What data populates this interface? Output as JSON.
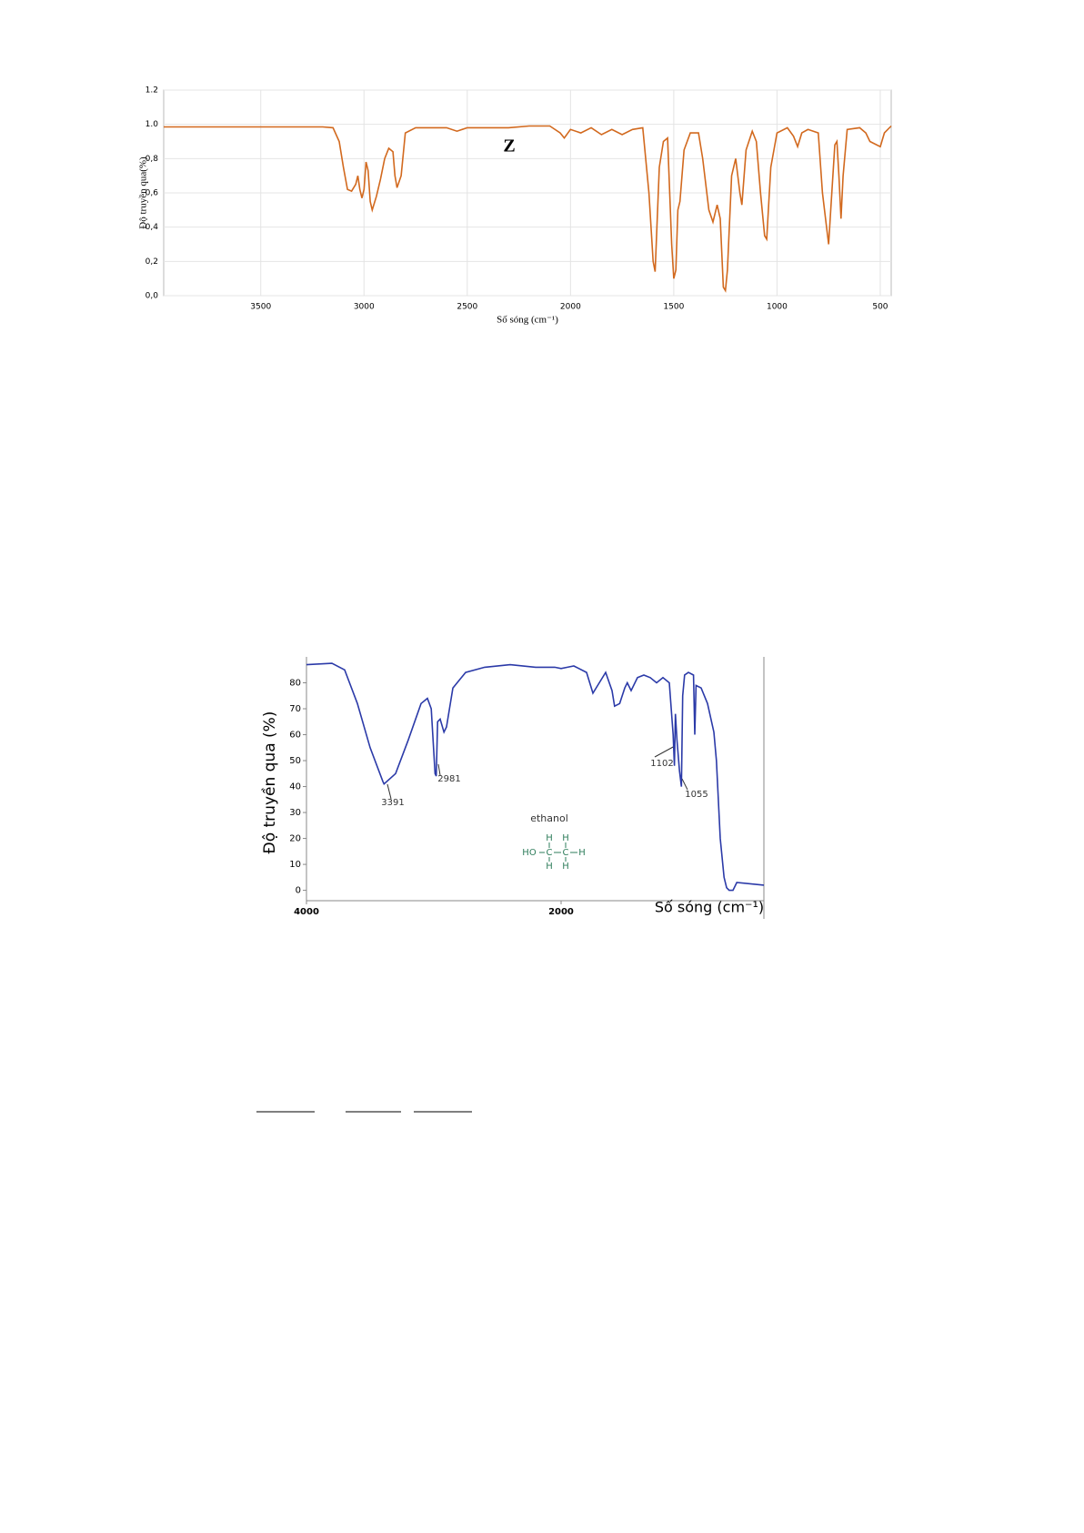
{
  "chart_data": [
    {
      "type": "line",
      "y_label": "Độ truyền qua(%)",
      "x_label": "Số sóng (cm⁻¹)",
      "annotation": "Z",
      "xlim": [
        3970,
        447
      ],
      "ylim": [
        0,
        1.2
      ],
      "xticks": [
        3500,
        3000,
        2500,
        2000,
        1500,
        1000,
        500
      ],
      "yticks": [
        {
          "value": 0,
          "label": "0,0"
        },
        {
          "value": 0.2,
          "label": "0,2"
        },
        {
          "value": 0.4,
          "label": "0,4"
        },
        {
          "value": 0.6,
          "label": "0,6"
        },
        {
          "value": 0.8,
          "label": "0,8"
        },
        {
          "value": 1.0,
          "label": "1.0"
        },
        {
          "value": 1.2,
          "label": "1.2"
        }
      ],
      "x": [
        3970,
        3500,
        3200,
        3150,
        3120,
        3100,
        3080,
        3060,
        3040,
        3030,
        3020,
        3010,
        3000,
        2990,
        2980,
        2970,
        2960,
        2940,
        2920,
        2900,
        2880,
        2860,
        2850,
        2840,
        2820,
        2800,
        2750,
        2600,
        2550,
        2500,
        2300,
        2200,
        2100,
        2050,
        2030,
        2000,
        1950,
        1900,
        1850,
        1800,
        1750,
        1700,
        1650,
        1620,
        1600,
        1590,
        1570,
        1550,
        1530,
        1510,
        1500,
        1490,
        1480,
        1470,
        1450,
        1420,
        1380,
        1360,
        1330,
        1310,
        1290,
        1275,
        1260,
        1250,
        1240,
        1220,
        1200,
        1180,
        1170,
        1150,
        1120,
        1100,
        1080,
        1060,
        1050,
        1030,
        1000,
        950,
        920,
        900,
        880,
        850,
        800,
        780,
        760,
        750,
        740,
        720,
        710,
        700,
        690,
        680,
        660,
        600,
        570,
        550,
        500,
        480,
        447
      ],
      "series": [
        {
          "color": "#d2691e",
          "values": [
            0.985,
            0.985,
            0.985,
            0.98,
            0.9,
            0.75,
            0.62,
            0.61,
            0.65,
            0.7,
            0.62,
            0.57,
            0.62,
            0.78,
            0.73,
            0.55,
            0.5,
            0.58,
            0.68,
            0.8,
            0.86,
            0.84,
            0.7,
            0.63,
            0.7,
            0.95,
            0.98,
            0.98,
            0.96,
            0.98,
            0.98,
            0.99,
            0.99,
            0.95,
            0.92,
            0.97,
            0.95,
            0.98,
            0.94,
            0.97,
            0.94,
            0.97,
            0.98,
            0.6,
            0.2,
            0.14,
            0.75,
            0.9,
            0.92,
            0.3,
            0.1,
            0.15,
            0.5,
            0.55,
            0.85,
            0.95,
            0.95,
            0.8,
            0.5,
            0.43,
            0.53,
            0.45,
            0.05,
            0.03,
            0.15,
            0.7,
            0.8,
            0.6,
            0.53,
            0.85,
            0.96,
            0.9,
            0.6,
            0.35,
            0.33,
            0.75,
            0.95,
            0.98,
            0.93,
            0.87,
            0.95,
            0.97,
            0.95,
            0.6,
            0.4,
            0.3,
            0.5,
            0.88,
            0.9,
            0.7,
            0.45,
            0.7,
            0.97,
            0.98,
            0.95,
            0.9,
            0.87,
            0.95,
            0.99
          ]
        }
      ]
    },
    {
      "type": "line",
      "y_label": "Độ truyền qua (%)",
      "x_label": "Số sóng (cm⁻¹)",
      "xlim": [
        4000,
        407
      ],
      "ylim": [
        -4,
        90
      ],
      "xticks": [
        4000,
        2000
      ],
      "yticks": [
        0,
        10,
        20,
        30,
        40,
        50,
        60,
        70,
        80
      ],
      "x": [
        4000,
        3800,
        3700,
        3600,
        3500,
        3400,
        3391,
        3300,
        3200,
        3100,
        3050,
        3020,
        2990,
        2981,
        2970,
        2950,
        2920,
        2900,
        2850,
        2750,
        2600,
        2400,
        2200,
        2050,
        2000,
        1950,
        1900,
        1800,
        1750,
        1700,
        1650,
        1600,
        1580,
        1540,
        1520,
        1500,
        1480,
        1450,
        1400,
        1350,
        1300,
        1250,
        1200,
        1150,
        1120,
        1110,
        1102,
        1090,
        1070,
        1055,
        1045,
        1030,
        1000,
        960,
        950,
        940,
        900,
        850,
        800,
        780,
        750,
        720,
        700,
        680,
        650,
        620,
        407
      ],
      "series": [
        {
          "color": "#2b3aa8",
          "values": [
            87,
            87.5,
            85,
            72,
            55,
            42,
            41,
            45,
            58,
            72,
            74,
            70,
            45,
            44,
            65,
            66,
            61,
            63,
            78,
            84,
            86,
            87,
            86,
            86,
            85.5,
            86,
            86.5,
            84,
            76,
            80,
            84,
            77,
            71,
            72,
            75,
            78,
            80,
            77,
            82,
            83,
            82,
            80,
            82,
            80,
            60,
            48,
            68,
            58,
            46,
            40,
            75,
            83,
            84,
            83,
            60,
            79,
            78,
            72,
            61,
            50,
            20,
            5,
            1,
            0,
            0,
            3,
            2
          ]
        }
      ],
      "annotations": [
        "3391",
        "2981",
        "1102",
        "1055",
        "ethanol"
      ],
      "molecule": [
        "H",
        "H",
        "HO",
        "C",
        "C",
        "H",
        "H",
        "H"
      ]
    }
  ]
}
